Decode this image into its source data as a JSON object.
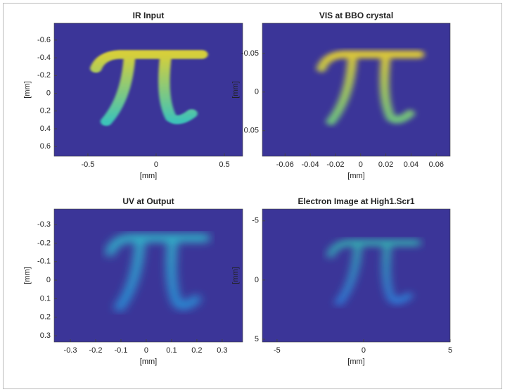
{
  "chart_data": [
    {
      "type": "image",
      "title": "IR Input",
      "xlabel": "[mm]",
      "ylabel": "[mm]",
      "xlim": [
        -0.747,
        0.634
      ],
      "ylim": [
        -0.79,
        0.71
      ],
      "y_reversed": true,
      "xticks": [
        -0.5,
        0,
        0.5
      ],
      "yticks": [
        -0.6,
        -0.4,
        -0.2,
        0,
        0.2,
        0.4,
        0.6
      ]
    },
    {
      "type": "image",
      "title": "VIS at BBO crystal",
      "xlabel": "[mm]",
      "ylabel": "[mm]",
      "xlim": [
        -0.078,
        0.071
      ],
      "ylim": [
        -0.089,
        0.083
      ],
      "y_reversed": true,
      "xticks": [
        -0.06,
        -0.04,
        -0.02,
        0,
        0.02,
        0.04,
        0.06
      ],
      "yticks": [
        -0.05,
        0,
        0.05
      ]
    },
    {
      "type": "image",
      "title": "UV at Output",
      "xlabel": "[mm]",
      "ylabel": "[mm]",
      "xlim": [
        -0.364,
        0.381
      ],
      "ylim": [
        -0.384,
        0.334
      ],
      "y_reversed": true,
      "xticks": [
        -0.3,
        -0.2,
        -0.1,
        0,
        0.1,
        0.2,
        0.3
      ],
      "yticks": [
        -0.3,
        -0.2,
        -0.1,
        0,
        0.1,
        0.2,
        0.3
      ]
    },
    {
      "type": "image",
      "title": "Electron Image at High1.Scr1",
      "xlabel": "[mm]",
      "ylabel": "[mm]",
      "xlim": [
        -5.85,
        5
      ],
      "ylim": [
        -6.0,
        5.24
      ],
      "y_reversed": true,
      "xticks": [
        -5,
        0,
        5
      ],
      "yticks": [
        -5,
        0,
        5
      ]
    }
  ]
}
